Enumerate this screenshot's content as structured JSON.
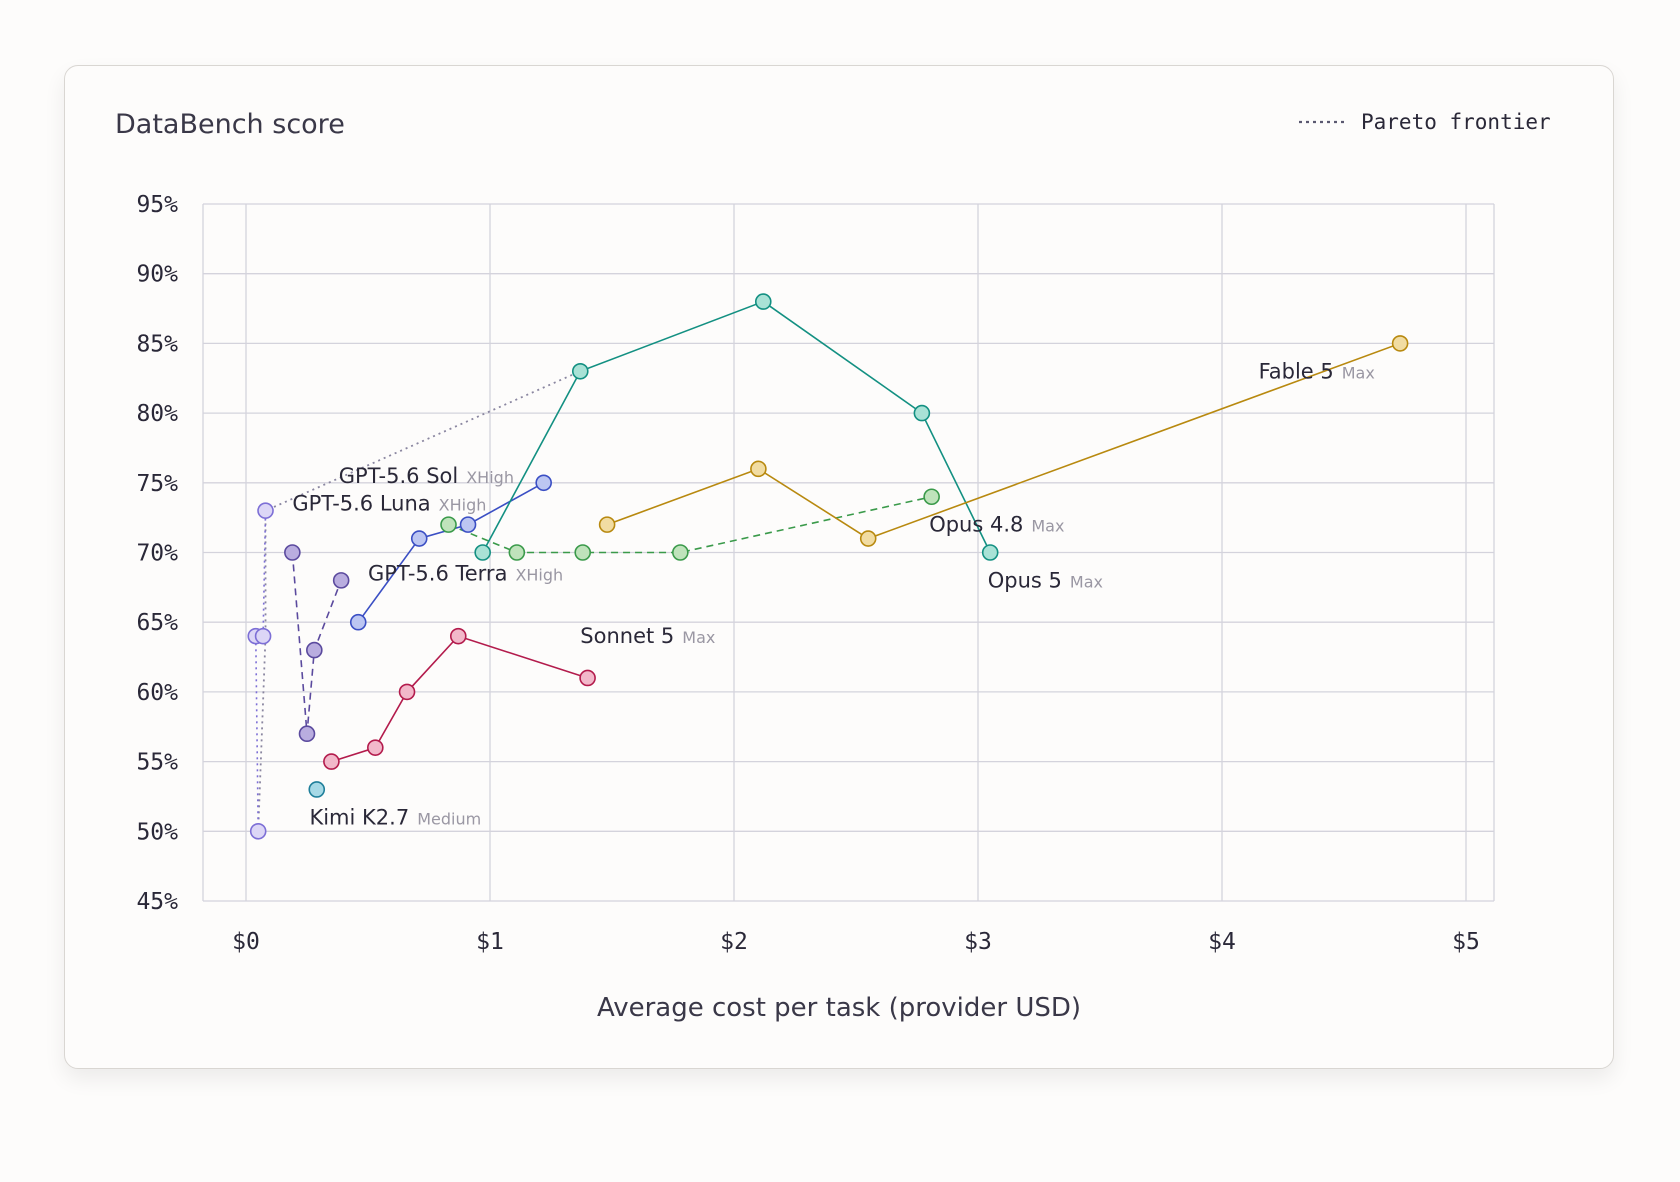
{
  "chart_data": {
    "type": "scatter",
    "ylabel": "DataBench score",
    "xlabel": "Average cost per task (provider USD)",
    "xlim": [
      0,
      5
    ],
    "ylim": [
      45,
      95
    ],
    "xticks": [
      "$0",
      "$1",
      "$2",
      "$3",
      "$4",
      "$5"
    ],
    "yticks": [
      "45%",
      "50%",
      "55%",
      "60%",
      "65%",
      "70%",
      "75%",
      "80%",
      "85%",
      "90%",
      "95%"
    ],
    "grid": true,
    "legend": {
      "position": "top-right",
      "label": "Pareto frontier"
    },
    "pareto_frontier": {
      "x": [
        0.05,
        0.08,
        0.08,
        1.37
      ],
      "y": [
        50,
        64,
        73,
        83
      ]
    },
    "series": [
      {
        "name": "GPT-5.6 Luna",
        "effort": "XHigh",
        "color": "#7d6fd6",
        "fill": "#dcd6f6",
        "dash": "dotted",
        "x": [
          0.05,
          0.04,
          0.07,
          0.08
        ],
        "y": [
          50,
          64,
          64,
          73
        ]
      },
      {
        "name": "GPT-5.6 Terra",
        "effort": "XHigh",
        "color": "#5b4a9e",
        "fill": "#b9addf",
        "dash": "dashed",
        "x": [
          0.19,
          0.25,
          0.28,
          0.39
        ],
        "y": [
          70,
          57,
          63,
          68
        ]
      },
      {
        "name": "GPT-5.6 Sol",
        "effort": "XHigh",
        "color": "#3b4fc4",
        "fill": "#bcc6f2",
        "dash": "solid",
        "x": [
          0.46,
          0.71,
          0.91,
          1.22
        ],
        "y": [
          65,
          71,
          72,
          75
        ]
      },
      {
        "name": "Kimi K2.7",
        "effort": "Medium",
        "color": "#1f7f9a",
        "fill": "#a6d9e6",
        "dash": "solid",
        "x": [
          0.29
        ],
        "y": [
          53
        ]
      },
      {
        "name": "Sonnet 5",
        "effort": "Max",
        "color": "#b31b4c",
        "fill": "#f2b8ca",
        "dash": "solid",
        "x": [
          0.35,
          0.53,
          0.66,
          0.87,
          1.4
        ],
        "y": [
          55,
          56,
          60,
          64,
          61
        ]
      },
      {
        "name": "Opus 4.8",
        "effort": "Max",
        "color": "#3a9a4a",
        "fill": "#bfe3bb",
        "dash": "dashed",
        "x": [
          0.83,
          1.11,
          1.38,
          1.78,
          2.81
        ],
        "y": [
          72,
          70,
          70,
          70,
          74
        ]
      },
      {
        "name": "Opus 5",
        "effort": "Max",
        "color": "#139082",
        "fill": "#a9e2d6",
        "dash": "solid",
        "x": [
          0.97,
          1.37,
          2.12,
          2.77,
          3.05
        ],
        "y": [
          70,
          83,
          88,
          80,
          70
        ]
      },
      {
        "name": "Fable 5",
        "effort": "Max",
        "color": "#b8890f",
        "fill": "#f1dca2",
        "dash": "solid",
        "x": [
          1.48,
          2.1,
          2.55,
          4.73
        ],
        "y": [
          72,
          76,
          71,
          85
        ]
      }
    ],
    "annotations": [
      {
        "series": "GPT-5.6 Sol",
        "x": 0.38,
        "y": 75
      },
      {
        "series": "GPT-5.6 Luna",
        "x": 0.19,
        "y": 73
      },
      {
        "series": "GPT-5.6 Terra",
        "x": 0.5,
        "y": 68
      },
      {
        "series": "Sonnet 5",
        "x": 1.37,
        "y": 63.5
      },
      {
        "series": "Kimi K2.7",
        "x": 0.26,
        "y": 50.5
      },
      {
        "series": "Opus 4.8",
        "x": 2.8,
        "y": 71.5
      },
      {
        "series": "Opus 5",
        "x": 3.04,
        "y": 67.5
      },
      {
        "series": "Fable 5",
        "x": 4.15,
        "y": 82.5
      }
    ]
  }
}
